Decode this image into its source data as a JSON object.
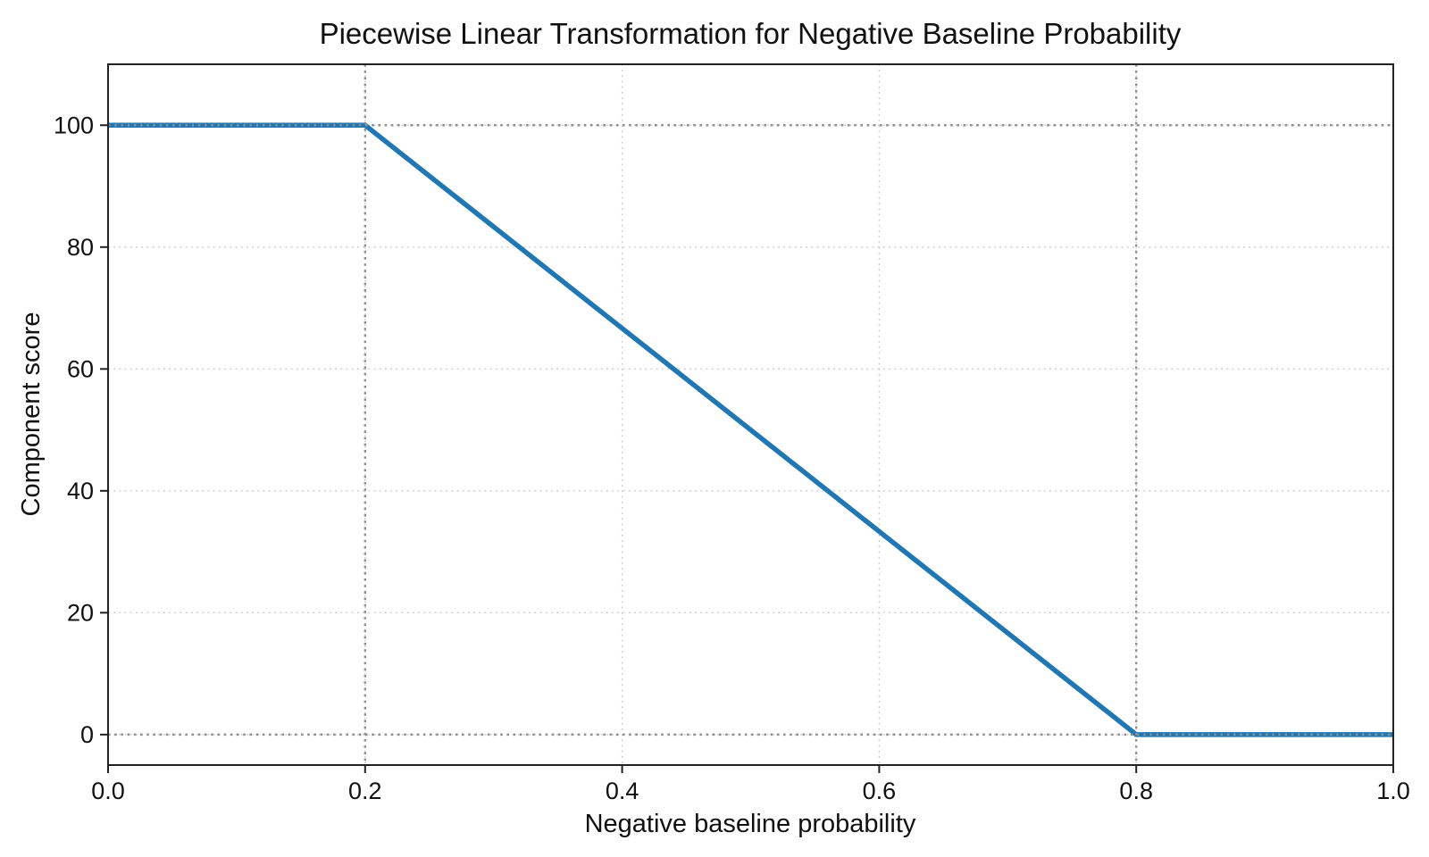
{
  "chart_data": {
    "type": "line",
    "title": "Piecewise Linear Transformation for Negative Baseline Probability",
    "xlabel": "Negative baseline probability",
    "ylabel": "Component score",
    "xlim": [
      0,
      1
    ],
    "ylim": [
      -5,
      110
    ],
    "x_ticks": [
      0.0,
      0.2,
      0.4,
      0.6,
      0.8,
      1.0
    ],
    "x_tick_labels": [
      "0.0",
      "0.2",
      "0.4",
      "0.6",
      "0.8",
      "1.0"
    ],
    "y_ticks": [
      0,
      20,
      40,
      60,
      80,
      100
    ],
    "y_tick_labels": [
      "0",
      "20",
      "40",
      "60",
      "80",
      "100"
    ],
    "grid": true,
    "legend": false,
    "series": [
      {
        "name": "component score",
        "x": [
          0.0,
          0.2,
          0.8,
          1.0
        ],
        "y": [
          100,
          100,
          0,
          0
        ],
        "color": "#1f77b4",
        "linewidth": 5.5
      }
    ],
    "reference_lines": {
      "vertical_x": [
        0.2,
        0.8
      ],
      "horizontal_y": [
        0,
        100
      ],
      "color": "#8f8f8f",
      "style": "dotted"
    },
    "colors": {
      "line": "#1f77b4",
      "grid": "#c9c9c9",
      "reference": "#8f8f8f",
      "spine": "#222222",
      "text": "#111111",
      "background": "#ffffff"
    }
  }
}
